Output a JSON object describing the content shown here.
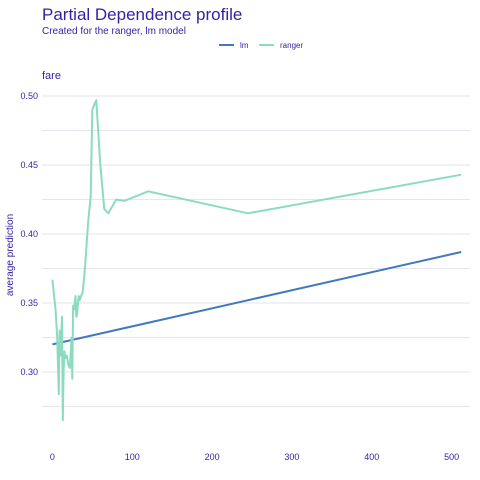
{
  "chart_data": {
    "type": "line",
    "title": "Partial Dependence profile",
    "subtitle": "Created for the ranger, lm model",
    "panel_label": "fare",
    "xlabel": "",
    "ylabel": "average prediction",
    "xlim": [
      -13,
      523
    ],
    "ylim": [
      0.258,
      0.508
    ],
    "x_ticks": [
      0,
      100,
      200,
      300,
      400,
      500
    ],
    "y_ticks": [
      0.3,
      0.35,
      0.4,
      0.45,
      0.5
    ],
    "y_tick_labels": [
      "0.30",
      "0.35",
      "0.40",
      "0.45",
      "0.50"
    ],
    "grid": true,
    "legend_position": "top-center",
    "series": [
      {
        "name": "lm",
        "color": "#4378bf",
        "x": [
          0,
          512
        ],
        "y": [
          0.32,
          0.387
        ]
      },
      {
        "name": "ranger",
        "color": "#8bdcbe",
        "x": [
          0,
          4,
          6,
          8,
          9,
          10,
          11,
          12,
          13,
          14,
          15,
          16,
          18,
          20,
          22,
          24,
          25,
          26,
          27,
          28,
          29,
          30,
          31,
          32,
          33,
          34,
          36,
          38,
          40,
          42,
          45,
          48,
          50,
          52,
          55,
          60,
          65,
          70,
          80,
          90,
          120,
          245,
          512
        ],
        "y": [
          0.367,
          0.345,
          0.325,
          0.284,
          0.33,
          0.312,
          0.325,
          0.34,
          0.265,
          0.3,
          0.315,
          0.31,
          0.312,
          0.305,
          0.303,
          0.325,
          0.295,
          0.348,
          0.345,
          0.35,
          0.355,
          0.34,
          0.342,
          0.35,
          0.355,
          0.352,
          0.355,
          0.358,
          0.37,
          0.385,
          0.41,
          0.427,
          0.49,
          0.493,
          0.497,
          0.45,
          0.418,
          0.415,
          0.425,
          0.424,
          0.431,
          0.415,
          0.443
        ]
      }
    ]
  }
}
